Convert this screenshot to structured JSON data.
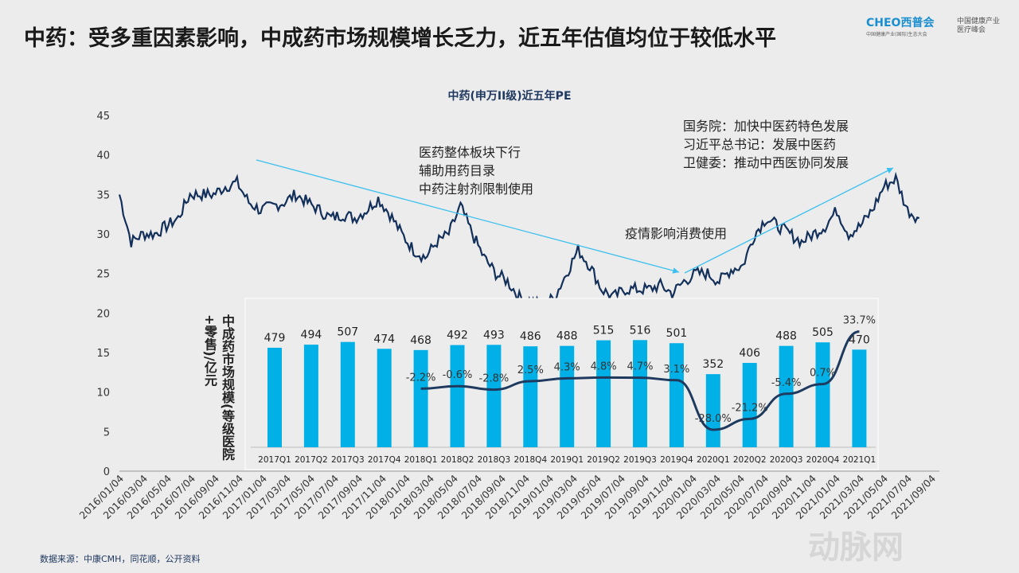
{
  "title": "中药：受多重因素影响，中成药市场规模增长乏力，近五年估值均位于较低水平",
  "logo": {
    "brand": "CHEO西普会",
    "brand_sub": "中国健康产业(国际)生态大会",
    "brand2": "中国健康产业 医疗峰会"
  },
  "source": "数据来源：中康CMH，同花顺，公开资料",
  "watermark": "动脉网",
  "annotations": {
    "a1": [
      "医药整体板块下行",
      "辅助用药目录",
      "中药注射剂限制使用"
    ],
    "a2": "疫情影响消费使用",
    "a3": [
      "国务院：加快中医药特色发展",
      "习近平总书记：发展中医药",
      "卫健委：推动中西医协同发展"
    ]
  },
  "colors": {
    "pe_line": "#13305a",
    "bars": "#00b0e6",
    "growth_line": "#1f3a5f",
    "arrow": "#3cc0f0"
  },
  "chart_data": [
    {
      "type": "line",
      "title": "中药(申万II级)近五年PE",
      "ylim": [
        0,
        45
      ],
      "yticks": [
        0,
        5,
        10,
        15,
        20,
        25,
        30,
        35,
        40,
        45
      ],
      "xticks": [
        "2016/01/04",
        "2016/03/04",
        "2016/05/04",
        "2016/07/04",
        "2016/09/04",
        "2016/11/04",
        "2017/01/04",
        "2017/03/04",
        "2017/05/04",
        "2017/07/04",
        "2017/09/04",
        "2017/11/04",
        "2018/01/04",
        "2018/03/04",
        "2018/05/04",
        "2018/07/04",
        "2018/09/04",
        "2018/11/04",
        "2019/01/04",
        "2019/03/04",
        "2019/05/04",
        "2019/07/04",
        "2019/09/04",
        "2019/11/04",
        "2020/01/04",
        "2020/03/04",
        "2020/05/04",
        "2020/07/04",
        "2020/09/04",
        "2020/11/04",
        "2021/01/04",
        "2021/03/04",
        "2021/05/04",
        "2021/07/04",
        "2021/09/04"
      ],
      "monthly_pe": [
        35,
        29,
        30,
        30,
        31,
        32,
        35,
        35,
        35,
        36,
        36.5,
        34,
        33,
        33.5,
        34,
        35,
        34,
        33,
        32,
        32.5,
        32,
        33,
        34.5,
        32.5,
        30,
        28,
        27,
        29,
        30,
        33.5,
        30,
        27,
        25,
        24,
        22,
        21.5,
        21,
        22,
        25,
        28,
        26,
        23,
        22,
        23,
        23,
        23,
        23.5,
        22.5,
        24,
        25,
        25,
        24,
        25.5,
        26,
        30,
        32,
        31,
        30,
        29,
        30,
        31,
        33,
        30,
        31,
        33,
        36,
        37,
        33,
        32
      ]
    },
    {
      "type": "bar",
      "ylabel": "中成药市场规模(等级医院+零售)/亿元",
      "categories": [
        "2017Q1",
        "2017Q2",
        "2017Q3",
        "2017Q4",
        "2018Q1",
        "2018Q2",
        "2018Q3",
        "2018Q4",
        "2019Q1",
        "2019Q2",
        "2019Q3",
        "2019Q4",
        "2020Q1",
        "2020Q2",
        "2020Q3",
        "2020Q4",
        "2021Q1"
      ],
      "values": [
        479,
        494,
        507,
        474,
        468,
        492,
        493,
        486,
        488,
        515,
        516,
        501,
        352,
        406,
        488,
        505,
        470
      ],
      "growth": [
        null,
        null,
        null,
        null,
        "-2.2%",
        "-0.6%",
        "-2.8%",
        "2.5%",
        "4.3%",
        "4.8%",
        "4.7%",
        "3.1%",
        "-28.0%",
        "-21.2%",
        "-5.4%",
        "0.7%",
        "33.7%"
      ],
      "growth_values": [
        null,
        null,
        null,
        null,
        -2.2,
        -0.6,
        -2.8,
        2.5,
        4.3,
        4.8,
        4.7,
        3.1,
        -28.0,
        -21.2,
        -5.4,
        0.7,
        33.7
      ]
    }
  ]
}
